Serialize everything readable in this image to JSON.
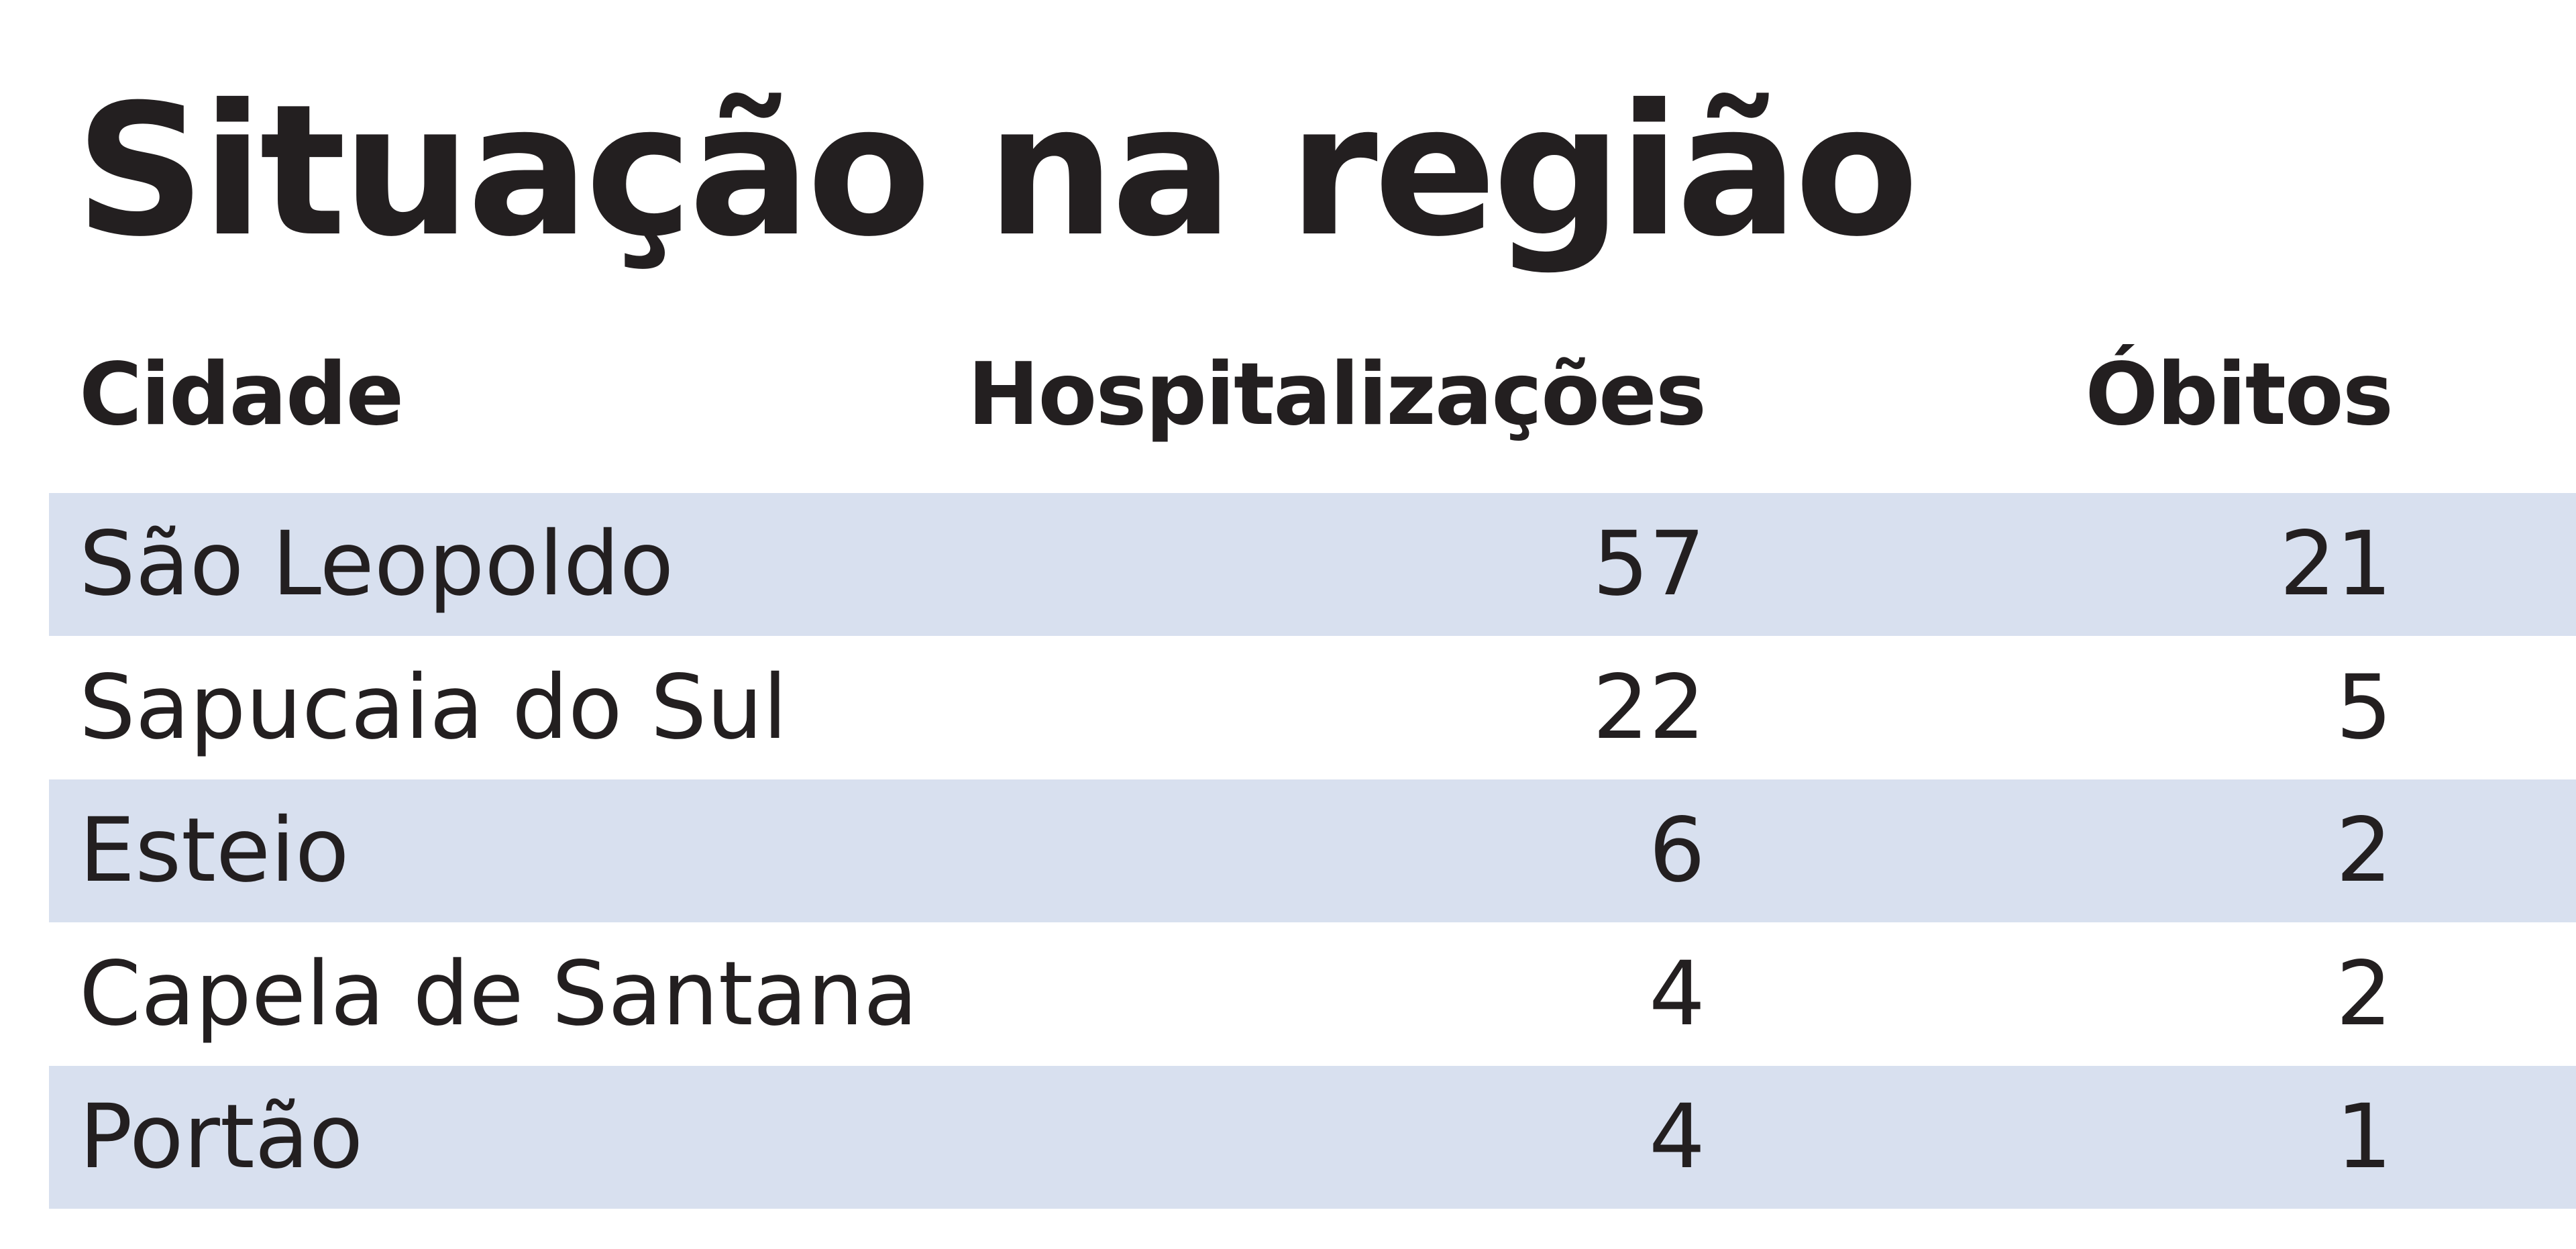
{
  "header": {
    "title": "Situação na região"
  },
  "table": {
    "columns": [
      "Cidade",
      "Hospitalizações",
      "Óbitos"
    ],
    "rows": [
      [
        "São Leopoldo",
        57,
        21
      ],
      [
        "Sapucaia do Sul",
        22,
        5
      ],
      [
        "Esteio",
        6,
        2
      ],
      [
        "Capela de Santana",
        4,
        2
      ],
      [
        "Portão",
        4,
        1
      ]
    ]
  }
}
